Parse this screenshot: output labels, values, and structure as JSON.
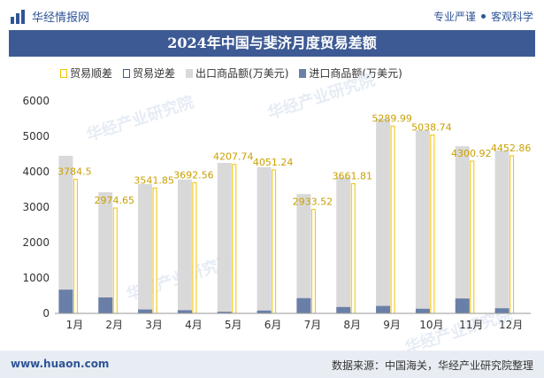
{
  "header": {
    "brand": "华经情报网",
    "tag1": "专业严谨",
    "tag2": "客观科学"
  },
  "title": "2024年中国与斐济月度贸易差额",
  "legend": {
    "surplus": "贸易顺差",
    "deficit": "贸易逆差",
    "export": "出口商品额(万美元)",
    "import": "进口商品额(万美元)"
  },
  "watermark": "华经产业研究院",
  "footer": {
    "website": "www.huaon.com",
    "source": "数据来源：中国海关，华经产业研究院整理"
  },
  "colors": {
    "export": "#d9d9d9",
    "import": "#6a7fa8",
    "surplus_border": "#f2c200",
    "deficit_border": "#3d5a94"
  },
  "chart_data": {
    "type": "bar",
    "categories": [
      "1月",
      "2月",
      "3月",
      "4月",
      "5月",
      "6月",
      "7月",
      "8月",
      "9月",
      "10月",
      "11月",
      "12月"
    ],
    "ylim": [
      0,
      6000
    ],
    "yticks": [
      0,
      1000,
      2000,
      3000,
      4000,
      5000,
      6000
    ],
    "series": [
      {
        "name": "出口商品额(万美元)",
        "values": [
          4450,
          3420,
          3650,
          3780,
          4250,
          4130,
          3370,
          3840,
          5500,
          5170,
          4720,
          4600
        ]
      },
      {
        "name": "进口商品额(万美元)",
        "values": [
          670,
          450,
          110,
          90,
          45,
          80,
          430,
          180,
          210,
          130,
          420,
          145
        ]
      },
      {
        "name": "贸易顺差",
        "values": [
          3784.5,
          2974.65,
          3541.85,
          3692.56,
          4207.74,
          4051.24,
          2933.52,
          3661.81,
          5289.99,
          5038.74,
          4300.92,
          4452.86
        ]
      }
    ],
    "data_labels": [
      "3784.5",
      "2974.65",
      "3541.85",
      "3692.56",
      "4207.74",
      "4051.24",
      "2933.52",
      "3661.81",
      "5289.99",
      "5038.74",
      "4300.92",
      "4452.86"
    ]
  }
}
